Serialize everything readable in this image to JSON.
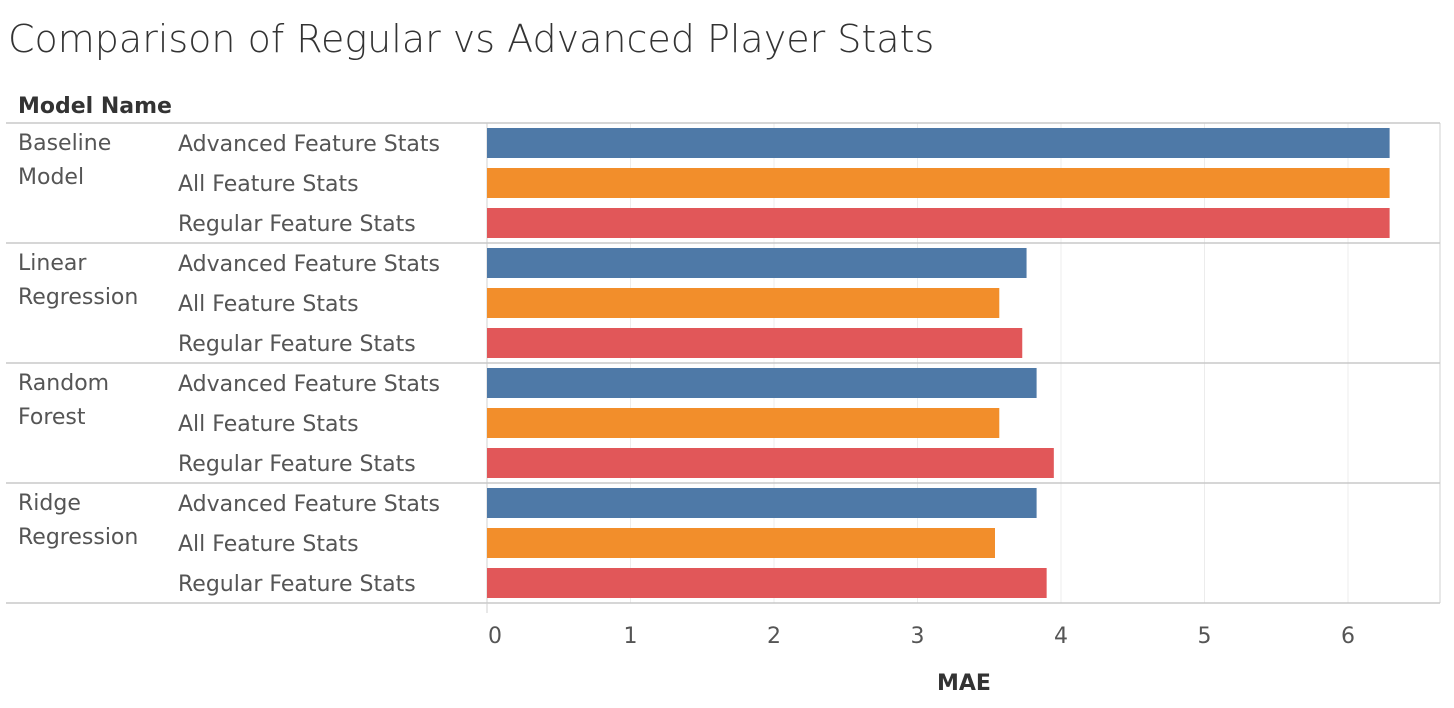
{
  "chart_data": {
    "type": "bar",
    "orientation": "horizontal",
    "title": "Comparison of Regular vs Advanced Player Stats",
    "row_header": "Model Name",
    "xlabel": "MAE",
    "xlim": [
      0,
      6.6
    ],
    "xticks": [
      "0",
      "1",
      "2",
      "3",
      "4",
      "5",
      "6"
    ],
    "grid": true,
    "groups": [
      {
        "name": "Baseline Model",
        "name_lines": [
          "Baseline",
          "Model"
        ]
      },
      {
        "name": "Linear Regression",
        "name_lines": [
          "Linear",
          "Regression"
        ]
      },
      {
        "name": "Random Forest",
        "name_lines": [
          "Random",
          "Forest"
        ]
      },
      {
        "name": "Ridge Regression",
        "name_lines": [
          "Ridge",
          "Regression"
        ]
      }
    ],
    "series": [
      {
        "name": "Advanced Feature Stats",
        "color": "#4e79a7",
        "values": [
          6.29,
          3.76,
          3.83,
          3.83
        ]
      },
      {
        "name": "All Feature Stats",
        "color": "#f28e2b",
        "values": [
          6.29,
          3.57,
          3.57,
          3.54
        ]
      },
      {
        "name": "Regular Feature Stats",
        "color": "#e15759",
        "values": [
          6.29,
          3.73,
          3.95,
          3.9
        ]
      }
    ]
  }
}
